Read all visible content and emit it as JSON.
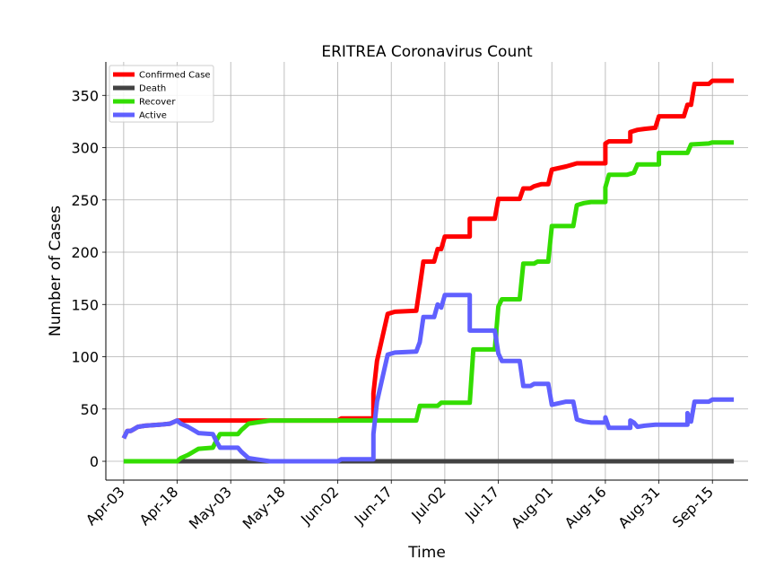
{
  "chart_data": {
    "type": "line",
    "title": "ERITREA Coronavirus Count",
    "xlabel": "Time",
    "ylabel": "Number of Cases",
    "x_ticks": [
      "Apr-03",
      "Apr-18",
      "May-03",
      "May-18",
      "Jun-02",
      "Jun-17",
      "Jul-02",
      "Jul-17",
      "Aug-01",
      "Aug-16",
      "Aug-31",
      "Sep-15"
    ],
    "y_ticks": [
      0,
      50,
      100,
      150,
      200,
      250,
      300,
      350
    ],
    "xlim": [
      "2020-03-29",
      "2020-09-25"
    ],
    "ylim": [
      -18,
      382
    ],
    "grid": true,
    "legend_position": "top-left",
    "series": [
      {
        "name": "Confirmed Case",
        "color": "#ff0000",
        "points": [
          [
            "2020-04-03",
            22
          ],
          [
            "2020-04-04",
            29
          ],
          [
            "2020-04-05",
            29
          ],
          [
            "2020-04-06",
            31
          ],
          [
            "2020-04-07",
            33
          ],
          [
            "2020-04-09",
            34
          ],
          [
            "2020-04-13",
            35
          ],
          [
            "2020-04-16",
            36
          ],
          [
            "2020-04-18",
            39
          ],
          [
            "2020-05-01",
            39
          ],
          [
            "2020-05-10",
            39
          ],
          [
            "2020-05-18",
            39
          ],
          [
            "2020-06-02",
            39
          ],
          [
            "2020-06-03",
            41
          ],
          [
            "2020-06-12",
            41
          ],
          [
            "2020-06-12",
            65
          ],
          [
            "2020-06-13",
            96
          ],
          [
            "2020-06-16",
            141
          ],
          [
            "2020-06-18",
            143
          ],
          [
            "2020-06-24",
            144
          ],
          [
            "2020-06-25",
            167
          ],
          [
            "2020-06-26",
            191
          ],
          [
            "2020-06-29",
            191
          ],
          [
            "2020-06-30",
            203
          ],
          [
            "2020-07-01",
            203
          ],
          [
            "2020-07-02",
            215
          ],
          [
            "2020-07-09",
            215
          ],
          [
            "2020-07-09",
            232
          ],
          [
            "2020-07-16",
            232
          ],
          [
            "2020-07-17",
            251
          ],
          [
            "2020-07-23",
            251
          ],
          [
            "2020-07-24",
            261
          ],
          [
            "2020-07-26",
            261
          ],
          [
            "2020-07-27",
            263
          ],
          [
            "2020-07-29",
            265
          ],
          [
            "2020-07-31",
            265
          ],
          [
            "2020-08-01",
            279
          ],
          [
            "2020-08-05",
            282
          ],
          [
            "2020-08-08",
            285
          ],
          [
            "2020-08-16",
            285
          ],
          [
            "2020-08-16",
            304
          ],
          [
            "2020-08-17",
            306
          ],
          [
            "2020-08-23",
            306
          ],
          [
            "2020-08-23",
            315
          ],
          [
            "2020-08-25",
            317
          ],
          [
            "2020-08-27",
            318
          ],
          [
            "2020-08-30",
            319
          ],
          [
            "2020-08-31",
            330
          ],
          [
            "2020-09-07",
            330
          ],
          [
            "2020-09-08",
            341
          ],
          [
            "2020-09-09",
            341
          ],
          [
            "2020-09-10",
            361
          ],
          [
            "2020-09-14",
            361
          ],
          [
            "2020-09-15",
            364
          ],
          [
            "2020-09-21",
            364
          ]
        ]
      },
      {
        "name": "Death",
        "color": "#424242",
        "points": [
          [
            "2020-04-03",
            0
          ],
          [
            "2020-09-21",
            0
          ]
        ]
      },
      {
        "name": "Recover",
        "color": "#33dd00",
        "points": [
          [
            "2020-04-03",
            0
          ],
          [
            "2020-04-18",
            0
          ],
          [
            "2020-04-19",
            3
          ],
          [
            "2020-04-21",
            6
          ],
          [
            "2020-04-23",
            10
          ],
          [
            "2020-04-24",
            12
          ],
          [
            "2020-04-28",
            13
          ],
          [
            "2020-04-29",
            20
          ],
          [
            "2020-04-30",
            26
          ],
          [
            "2020-05-05",
            26
          ],
          [
            "2020-05-06",
            30
          ],
          [
            "2020-05-08",
            36
          ],
          [
            "2020-05-10",
            37
          ],
          [
            "2020-05-12",
            38
          ],
          [
            "2020-05-14",
            39
          ],
          [
            "2020-06-13",
            39
          ],
          [
            "2020-06-24",
            39
          ],
          [
            "2020-06-25",
            53
          ],
          [
            "2020-06-30",
            53
          ],
          [
            "2020-07-01",
            56
          ],
          [
            "2020-07-09",
            56
          ],
          [
            "2020-07-10",
            107
          ],
          [
            "2020-07-16",
            107
          ],
          [
            "2020-07-17",
            148
          ],
          [
            "2020-07-18",
            155
          ],
          [
            "2020-07-23",
            155
          ],
          [
            "2020-07-24",
            189
          ],
          [
            "2020-07-27",
            189
          ],
          [
            "2020-07-28",
            191
          ],
          [
            "2020-07-31",
            191
          ],
          [
            "2020-08-01",
            225
          ],
          [
            "2020-08-07",
            225
          ],
          [
            "2020-08-08",
            245
          ],
          [
            "2020-08-10",
            247
          ],
          [
            "2020-08-12",
            248
          ],
          [
            "2020-08-16",
            248
          ],
          [
            "2020-08-16",
            262
          ],
          [
            "2020-08-17",
            274
          ],
          [
            "2020-08-22",
            274
          ],
          [
            "2020-08-24",
            276
          ],
          [
            "2020-08-25",
            284
          ],
          [
            "2020-08-31",
            284
          ],
          [
            "2020-08-31",
            295
          ],
          [
            "2020-09-08",
            295
          ],
          [
            "2020-09-09",
            303
          ],
          [
            "2020-09-14",
            304
          ],
          [
            "2020-09-15",
            305
          ],
          [
            "2020-09-21",
            305
          ]
        ]
      },
      {
        "name": "Active",
        "color": "#6060ff",
        "points": [
          [
            "2020-04-03",
            22
          ],
          [
            "2020-04-04",
            29
          ],
          [
            "2020-04-05",
            29
          ],
          [
            "2020-04-06",
            31
          ],
          [
            "2020-04-07",
            33
          ],
          [
            "2020-04-09",
            34
          ],
          [
            "2020-04-13",
            35
          ],
          [
            "2020-04-16",
            36
          ],
          [
            "2020-04-18",
            39
          ],
          [
            "2020-04-19",
            36
          ],
          [
            "2020-04-21",
            33
          ],
          [
            "2020-04-23",
            29
          ],
          [
            "2020-04-24",
            27
          ],
          [
            "2020-04-28",
            26
          ],
          [
            "2020-04-29",
            19
          ],
          [
            "2020-04-30",
            13
          ],
          [
            "2020-05-05",
            13
          ],
          [
            "2020-05-06",
            9
          ],
          [
            "2020-05-08",
            3
          ],
          [
            "2020-05-10",
            2
          ],
          [
            "2020-05-12",
            1
          ],
          [
            "2020-05-14",
            0
          ],
          [
            "2020-06-02",
            0
          ],
          [
            "2020-06-03",
            2
          ],
          [
            "2020-06-12",
            2
          ],
          [
            "2020-06-12",
            26
          ],
          [
            "2020-06-13",
            57
          ],
          [
            "2020-06-16",
            102
          ],
          [
            "2020-06-18",
            104
          ],
          [
            "2020-06-24",
            105
          ],
          [
            "2020-06-25",
            114
          ],
          [
            "2020-06-26",
            138
          ],
          [
            "2020-06-29",
            138
          ],
          [
            "2020-06-30",
            150
          ],
          [
            "2020-07-01",
            147
          ],
          [
            "2020-07-02",
            159
          ],
          [
            "2020-07-09",
            159
          ],
          [
            "2020-07-09",
            125
          ],
          [
            "2020-07-16",
            125
          ],
          [
            "2020-07-17",
            103
          ],
          [
            "2020-07-18",
            96
          ],
          [
            "2020-07-23",
            96
          ],
          [
            "2020-07-24",
            72
          ],
          [
            "2020-07-26",
            72
          ],
          [
            "2020-07-27",
            74
          ],
          [
            "2020-07-31",
            74
          ],
          [
            "2020-08-01",
            54
          ],
          [
            "2020-08-05",
            57
          ],
          [
            "2020-08-07",
            57
          ],
          [
            "2020-08-08",
            40
          ],
          [
            "2020-08-10",
            38
          ],
          [
            "2020-08-12",
            37
          ],
          [
            "2020-08-16",
            37
          ],
          [
            "2020-08-16",
            42
          ],
          [
            "2020-08-17",
            32
          ],
          [
            "2020-08-23",
            32
          ],
          [
            "2020-08-23",
            39
          ],
          [
            "2020-08-24",
            37
          ],
          [
            "2020-08-25",
            33
          ],
          [
            "2020-08-27",
            34
          ],
          [
            "2020-08-30",
            35
          ],
          [
            "2020-08-31",
            35
          ],
          [
            "2020-09-08",
            35
          ],
          [
            "2020-09-08",
            46
          ],
          [
            "2020-09-09",
            38
          ],
          [
            "2020-09-10",
            57
          ],
          [
            "2020-09-14",
            57
          ],
          [
            "2020-09-15",
            59
          ],
          [
            "2020-09-21",
            59
          ]
        ]
      }
    ]
  }
}
